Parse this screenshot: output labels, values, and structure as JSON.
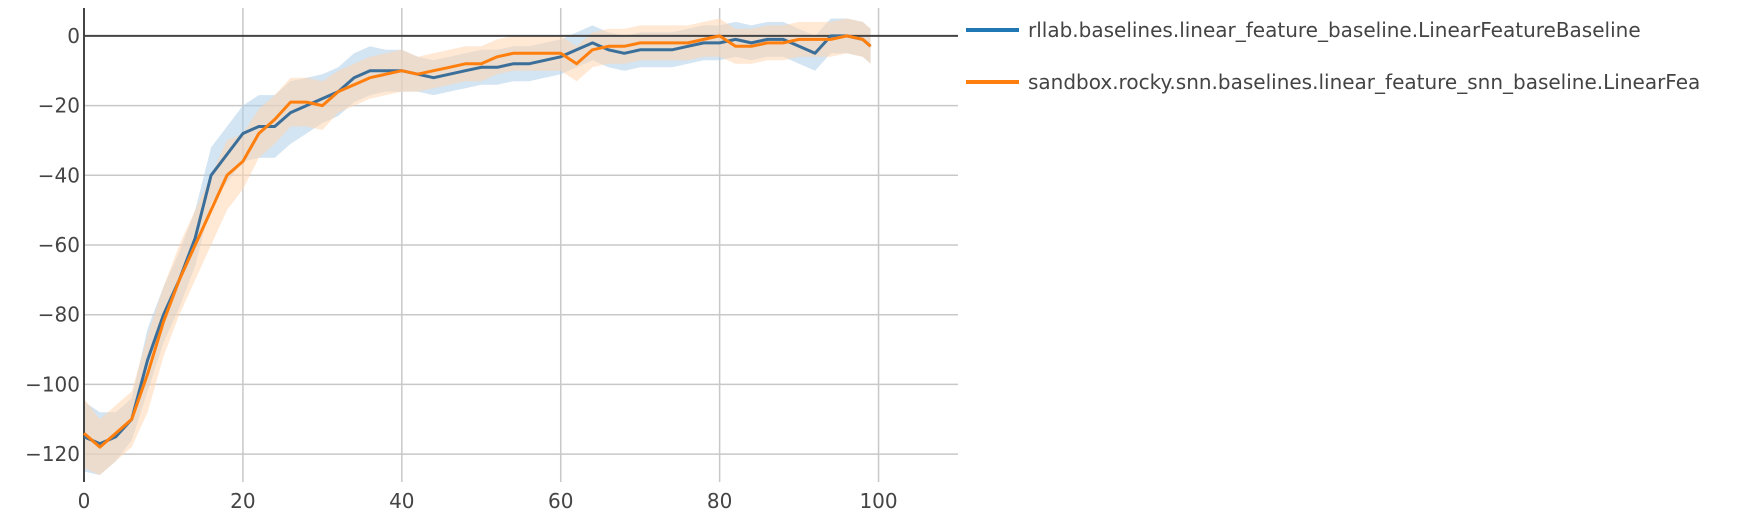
{
  "chart_data": {
    "type": "line",
    "xlabel": "",
    "ylabel": "",
    "xlim": [
      0,
      110
    ],
    "ylim": [
      -128,
      8
    ],
    "xticks": [
      0,
      20,
      40,
      60,
      80,
      100
    ],
    "yticks": [
      0,
      -20,
      -40,
      -60,
      -80,
      -100,
      -120
    ],
    "xtick_labels": [
      "0",
      "20",
      "40",
      "60",
      "80",
      "100"
    ],
    "ytick_labels": [
      "0",
      "−20",
      "−40",
      "−60",
      "−80",
      "−100",
      "−120"
    ],
    "grid": true,
    "legend_position": "right",
    "x": [
      0,
      2,
      4,
      6,
      8,
      10,
      12,
      14,
      16,
      18,
      20,
      22,
      24,
      26,
      28,
      30,
      32,
      34,
      36,
      38,
      40,
      42,
      44,
      46,
      48,
      50,
      52,
      54,
      56,
      58,
      60,
      62,
      64,
      66,
      68,
      70,
      72,
      74,
      76,
      78,
      80,
      82,
      84,
      86,
      88,
      90,
      92,
      94,
      96,
      98,
      99
    ],
    "series": [
      {
        "name": "rllab.baselines.linear_feature_baseline.LinearFeatureBaseline",
        "color": "#1f77b4",
        "line_color": "#3b6f9a",
        "band_color": "#aecde8",
        "values": [
          -115,
          -117,
          -115,
          -110,
          -93,
          -80,
          -70,
          -58,
          -40,
          -34,
          -28,
          -26,
          -26,
          -22,
          -20,
          -18,
          -16,
          -12,
          -10,
          -10,
          -10,
          -11,
          -12,
          -11,
          -10,
          -9,
          -9,
          -8,
          -8,
          -7,
          -6,
          -4,
          -2,
          -4,
          -5,
          -4,
          -4,
          -4,
          -3,
          -2,
          -2,
          -1,
          -2,
          -1,
          -1,
          -3,
          -5,
          0,
          0,
          -1,
          -3
        ],
        "lower": [
          -125,
          -126,
          -122,
          -116,
          -102,
          -88,
          -78,
          -66,
          -48,
          -42,
          -36,
          -35,
          -35,
          -31,
          -28,
          -25,
          -23,
          -19,
          -17,
          -16,
          -16,
          -16,
          -17,
          -16,
          -15,
          -14,
          -14,
          -13,
          -13,
          -12,
          -11,
          -9,
          -7,
          -9,
          -10,
          -9,
          -9,
          -9,
          -8,
          -7,
          -7,
          -6,
          -7,
          -6,
          -6,
          -8,
          -10,
          -5,
          -5,
          -6,
          -8
        ],
        "upper": [
          -105,
          -108,
          -108,
          -104,
          -84,
          -72,
          -62,
          -50,
          -32,
          -26,
          -20,
          -17,
          -17,
          -13,
          -12,
          -11,
          -9,
          -5,
          -3,
          -4,
          -4,
          -6,
          -7,
          -6,
          -5,
          -4,
          -4,
          -3,
          -3,
          -2,
          -1,
          1,
          3,
          1,
          0,
          1,
          1,
          1,
          2,
          3,
          3,
          4,
          3,
          4,
          4,
          2,
          0,
          5,
          5,
          4,
          2
        ]
      },
      {
        "name": "sandbox.rocky.snn.baselines.linear_feature_snn_baseline.LinearFea",
        "color": "#ff7f0e",
        "line_color": "#ff7f0e",
        "band_color": "#ffd6b0",
        "values": [
          -114,
          -118,
          -114,
          -110,
          -97,
          -82,
          -70,
          -60,
          -50,
          -40,
          -36,
          -28,
          -24,
          -19,
          -19,
          -20,
          -16,
          -14,
          -12,
          -11,
          -10,
          -11,
          -10,
          -9,
          -8,
          -8,
          -6,
          -5,
          -5,
          -5,
          -5,
          -8,
          -4,
          -3,
          -3,
          -2,
          -2,
          -2,
          -2,
          -1,
          0,
          -3,
          -3,
          -2,
          -2,
          -1,
          -1,
          -1,
          0,
          -1,
          -3
        ],
        "lower": [
          -124,
          -126,
          -122,
          -118,
          -108,
          -92,
          -80,
          -70,
          -60,
          -50,
          -44,
          -35,
          -31,
          -26,
          -26,
          -27,
          -22,
          -20,
          -18,
          -17,
          -16,
          -16,
          -15,
          -14,
          -13,
          -13,
          -11,
          -10,
          -10,
          -10,
          -10,
          -13,
          -9,
          -8,
          -8,
          -7,
          -7,
          -7,
          -7,
          -6,
          -6,
          -8,
          -8,
          -7,
          -7,
          -6,
          -6,
          -6,
          -5,
          -6,
          -8
        ],
        "upper": [
          -104,
          -110,
          -106,
          -102,
          -86,
          -72,
          -60,
          -50,
          -40,
          -30,
          -28,
          -21,
          -17,
          -12,
          -12,
          -13,
          -10,
          -8,
          -6,
          -5,
          -4,
          -6,
          -5,
          -4,
          -3,
          -3,
          -1,
          0,
          0,
          0,
          0,
          -3,
          1,
          2,
          2,
          3,
          3,
          3,
          3,
          4,
          5,
          2,
          2,
          3,
          3,
          4,
          4,
          4,
          5,
          4,
          2
        ]
      }
    ]
  }
}
